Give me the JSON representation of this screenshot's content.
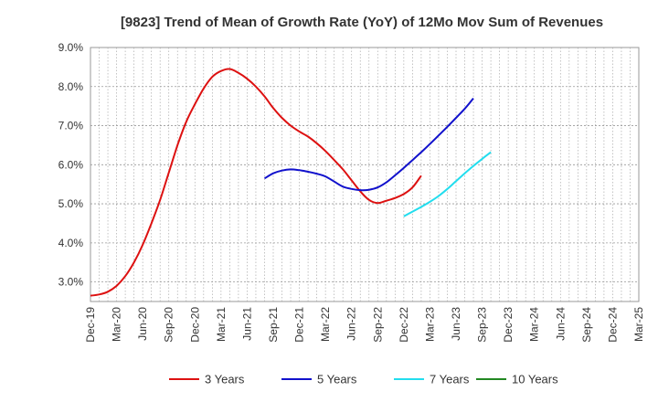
{
  "chart_data": {
    "type": "line",
    "title": "[9823]  Trend of Mean of Growth Rate (YoY) of 12Mo Mov Sum of Revenues",
    "xlabel": "",
    "ylabel": "",
    "x_ticks": [
      "Dec-19",
      "Mar-20",
      "Jun-20",
      "Sep-20",
      "Dec-20",
      "Mar-21",
      "Jun-21",
      "Sep-21",
      "Dec-21",
      "Mar-22",
      "Jun-22",
      "Sep-22",
      "Dec-22",
      "Mar-23",
      "Jun-23",
      "Sep-23",
      "Dec-23",
      "Mar-24",
      "Jun-24",
      "Sep-24",
      "Dec-24",
      "Mar-25"
    ],
    "y_ticks": [
      "3.0%",
      "4.0%",
      "5.0%",
      "6.0%",
      "7.0%",
      "8.0%",
      "9.0%"
    ],
    "y_tick_values": [
      3,
      4,
      5,
      6,
      7,
      8,
      9
    ],
    "ylim": [
      2.5,
      9.0
    ],
    "grid": true,
    "legend_position": "bottom",
    "series": [
      {
        "name": "3 Years",
        "color": "#dd1111",
        "points": [
          [
            0,
            2.65
          ],
          [
            1,
            2.68
          ],
          [
            2,
            2.75
          ],
          [
            3,
            2.9
          ],
          [
            4,
            3.15
          ],
          [
            5,
            3.5
          ],
          [
            6,
            3.95
          ],
          [
            7,
            4.5
          ],
          [
            8,
            5.1
          ],
          [
            9,
            5.8
          ],
          [
            10,
            6.5
          ],
          [
            11,
            7.1
          ],
          [
            12,
            7.55
          ],
          [
            13,
            7.95
          ],
          [
            14,
            8.25
          ],
          [
            15,
            8.4
          ],
          [
            16,
            8.45
          ],
          [
            17,
            8.35
          ],
          [
            18,
            8.2
          ],
          [
            19,
            8.0
          ],
          [
            20,
            7.75
          ],
          [
            21,
            7.45
          ],
          [
            22,
            7.2
          ],
          [
            23,
            7.0
          ],
          [
            24,
            6.85
          ],
          [
            25,
            6.72
          ],
          [
            26,
            6.55
          ],
          [
            27,
            6.35
          ],
          [
            28,
            6.12
          ],
          [
            29,
            5.88
          ],
          [
            30,
            5.6
          ],
          [
            31,
            5.32
          ],
          [
            32,
            5.1
          ],
          [
            33,
            5.02
          ],
          [
            34,
            5.08
          ],
          [
            35,
            5.15
          ],
          [
            36,
            5.25
          ],
          [
            37,
            5.42
          ],
          [
            38,
            5.72
          ]
        ]
      },
      {
        "name": "5 Years",
        "color": "#1111cc",
        "points": [
          [
            20,
            5.65
          ],
          [
            21,
            5.78
          ],
          [
            22,
            5.85
          ],
          [
            23,
            5.88
          ],
          [
            24,
            5.86
          ],
          [
            25,
            5.82
          ],
          [
            26,
            5.77
          ],
          [
            27,
            5.7
          ],
          [
            28,
            5.57
          ],
          [
            29,
            5.44
          ],
          [
            30,
            5.38
          ],
          [
            31,
            5.35
          ],
          [
            32,
            5.36
          ],
          [
            33,
            5.42
          ],
          [
            34,
            5.55
          ],
          [
            35,
            5.73
          ],
          [
            36,
            5.92
          ],
          [
            37,
            6.12
          ],
          [
            38,
            6.32
          ],
          [
            39,
            6.53
          ],
          [
            40,
            6.75
          ],
          [
            41,
            6.97
          ],
          [
            42,
            7.2
          ],
          [
            43,
            7.43
          ],
          [
            44,
            7.7
          ]
        ]
      },
      {
        "name": "7 Years",
        "color": "#22ddee",
        "points": [
          [
            36,
            4.68
          ],
          [
            37,
            4.8
          ],
          [
            38,
            4.92
          ],
          [
            39,
            5.05
          ],
          [
            40,
            5.2
          ],
          [
            41,
            5.38
          ],
          [
            42,
            5.58
          ],
          [
            43,
            5.78
          ],
          [
            44,
            5.97
          ],
          [
            45,
            6.15
          ],
          [
            46,
            6.32
          ]
        ]
      },
      {
        "name": "10 Years",
        "color": "#228822",
        "points": []
      }
    ]
  }
}
